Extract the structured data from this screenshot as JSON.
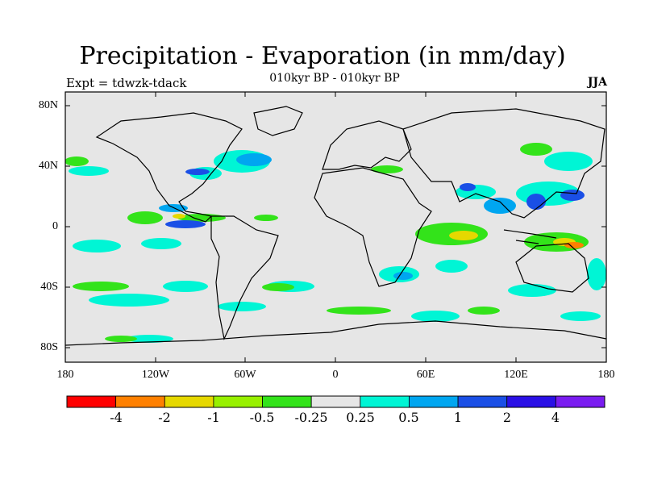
{
  "header": {
    "title": "Precipitation - Evaporation (in mm/day)",
    "subtitle": "010kyr BP - 010kyr BP",
    "left_label": "Expt = tdwzk-tdack",
    "right_label": "JJA"
  },
  "axes": {
    "lat_ticks": [
      "80N",
      "40N",
      "0",
      "40S",
      "80S"
    ],
    "lon_ticks": [
      "180",
      "120W",
      "60W",
      "0",
      "60E",
      "120E",
      "180"
    ]
  },
  "colorbar": {
    "colors": [
      "#ff0000",
      "#ff8000",
      "#e6d800",
      "#98f000",
      "#33e31a",
      "#e6e6e6",
      "#00f5d5",
      "#00a6f0",
      "#1a4fe6",
      "#2a10e6",
      "#7a1cf0"
    ],
    "labels": [
      "-4",
      "-2",
      "-1",
      "-0.5",
      "-0.25",
      "0.25",
      "0.5",
      "1",
      "2",
      "4"
    ]
  },
  "map": {
    "background_color": "#e6e6e6",
    "projection": "cylindrical-equidistant",
    "season": "JJA"
  }
}
